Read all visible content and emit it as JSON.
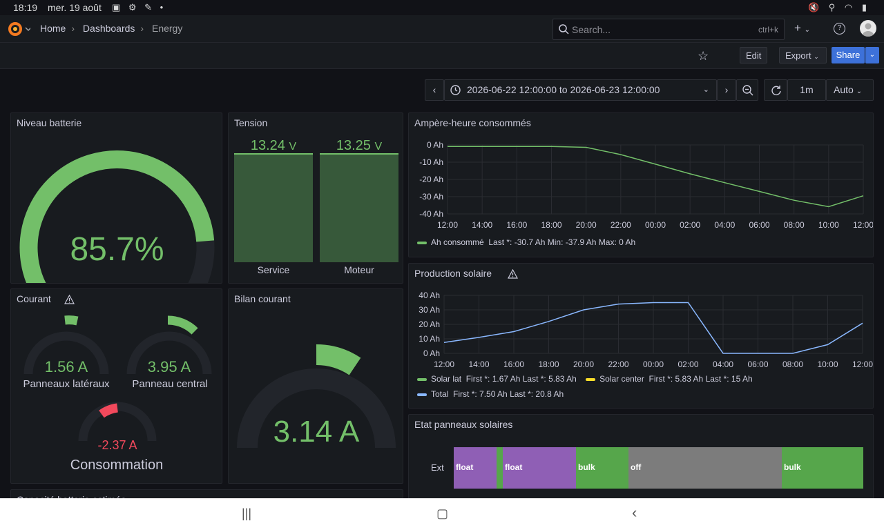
{
  "status": {
    "time": "18:19",
    "date": "mer. 19 août",
    "icons_left": "▣ ⚙ ✎ •",
    "icons_right": "🔇 ⚲ ◠ ▮"
  },
  "nav": {
    "breadcrumbs": [
      "Home",
      "Dashboards",
      "Energy"
    ],
    "search_placeholder": "Search...",
    "search_shortcut": "ctrl+k",
    "plus": "+",
    "help": "?"
  },
  "toolbar": {
    "edit": "Edit",
    "export": "Export",
    "share": "Share"
  },
  "timepicker": {
    "range": "2026-06-22 12:00:00 to 2026-06-23 12:00:00",
    "interval": "1m",
    "auto": "Auto"
  },
  "panels": {
    "battery": {
      "title": "Niveau batterie",
      "value": "85.7%",
      "level": 0.857,
      "color": "#73bf69"
    },
    "tension": {
      "title": "Tension",
      "bars": [
        {
          "label": "Service",
          "value": "13.24",
          "unit": "V"
        },
        {
          "label": "Moteur",
          "value": "13.25",
          "unit": "V"
        }
      ]
    },
    "courant": {
      "title": "Courant",
      "gauges": [
        {
          "label": "Panneaux latéraux",
          "value": "1.56 A",
          "color": "#73bf69"
        },
        {
          "label": "Panneau central",
          "value": "3.95 A",
          "color": "#73bf69"
        },
        {
          "label": "Consommation",
          "value": "-2.37 A",
          "color": "#f2495c"
        }
      ]
    },
    "bilan": {
      "title": "Bilan courant",
      "value": "3.14 A",
      "color": "#73bf69"
    },
    "ah": {
      "title": "Ampère-heure consommés",
      "legend": {
        "name": "Ah consommé",
        "stats": "Last *: -30.7 Ah  Min: -37.9 Ah  Max: 0 Ah",
        "color": "#73bf69"
      }
    },
    "solar": {
      "title": "Production solaire",
      "legend": [
        {
          "name": "Solar lat",
          "stats": "First *: 1.67 Ah  Last *: 5.83 Ah",
          "color": "#73bf69"
        },
        {
          "name": "Solar center",
          "stats": "First *: 5.83 Ah  Last *: 15 Ah",
          "color": "#fade2a"
        },
        {
          "name": "Total",
          "stats": "First *: 7.50 Ah  Last *: 20.8 Ah",
          "color": "#8ab8ff"
        }
      ]
    },
    "etat": {
      "title": "Etat panneaux solaires",
      "row_label": "Ext",
      "segments": [
        {
          "label": "float",
          "color": "#8f5fb5"
        },
        {
          "label": "",
          "color": "#56a64b"
        },
        {
          "label": "float",
          "color": "#8f5fb5"
        },
        {
          "label": "bulk",
          "color": "#56a64b"
        },
        {
          "label": "off",
          "color": "#7c7c7c"
        },
        {
          "label": "bulk",
          "color": "#56a64b"
        }
      ]
    },
    "capacity": {
      "title": "Capacité batterie estimée"
    }
  },
  "chart_data": [
    {
      "type": "line",
      "title": "Ampère-heure consommés",
      "x": [
        "12:00",
        "14:00",
        "16:00",
        "18:00",
        "20:00",
        "22:00",
        "00:00",
        "02:00",
        "04:00",
        "06:00",
        "08:00",
        "10:00",
        "12:00"
      ],
      "yticks": [
        "0 Ah",
        "-10 Ah",
        "-20 Ah",
        "-30 Ah",
        "-40 Ah"
      ],
      "ylim": [
        -42,
        1
      ],
      "series": [
        {
          "name": "Ah consommé",
          "values": [
            0,
            0,
            0,
            0,
            -0.5,
            -5,
            -11,
            -17,
            -22.5,
            -28,
            -33.5,
            -37.5,
            -30.7
          ]
        }
      ]
    },
    {
      "type": "line",
      "title": "Production solaire",
      "x": [
        "12:00",
        "14:00",
        "16:00",
        "18:00",
        "20:00",
        "22:00",
        "00:00",
        "02:00",
        "04:00",
        "06:00",
        "08:00",
        "10:00",
        "12:00"
      ],
      "yticks": [
        "40 Ah",
        "30 Ah",
        "20 Ah",
        "10 Ah",
        "0 Ah"
      ],
      "ylim": [
        0,
        40
      ],
      "series": [
        {
          "name": "Total",
          "values": [
            7.5,
            11,
            15,
            22,
            30,
            34,
            35,
            35,
            0,
            0,
            0,
            6,
            20.8
          ]
        }
      ]
    }
  ]
}
